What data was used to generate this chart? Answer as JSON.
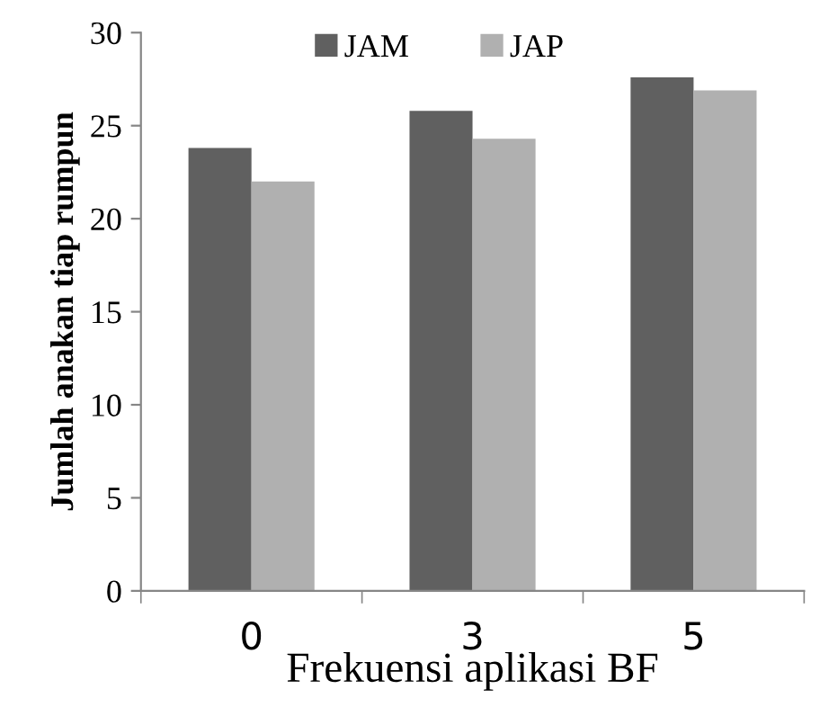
{
  "chart_data": {
    "type": "bar",
    "xlabel": "Frekuensi aplikasi BF",
    "ylabel": "Jumlah anakan tiap rumpun",
    "categories": [
      "0",
      "3",
      "5"
    ],
    "series": [
      {
        "name": "JAM",
        "color": "#606060",
        "values": [
          23.8,
          25.8,
          27.6
        ]
      },
      {
        "name": "JAP",
        "color": "#b0b0b0",
        "values": [
          22.0,
          24.3,
          26.9
        ]
      }
    ],
    "ylim": [
      0,
      30
    ],
    "yticks": [
      0,
      5,
      10,
      15,
      20,
      25,
      30
    ],
    "grid": false,
    "legend": "top"
  }
}
